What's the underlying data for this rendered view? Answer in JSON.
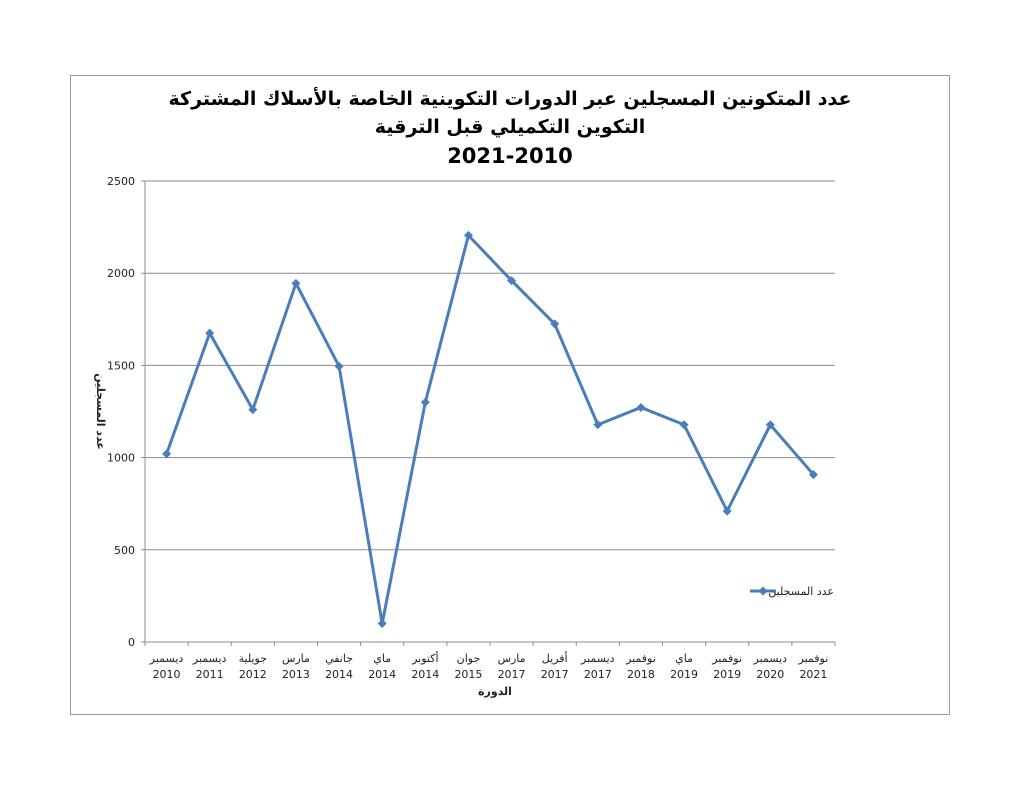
{
  "chart_data": {
    "type": "line",
    "title_lines": [
      "عدد المتكونين المسجلين عبر الدورات التكوينية الخاصة بالأسلاك المشتركة",
      "التكوين التكميلي قبل الترقية",
      "2021-2010"
    ],
    "xlabel": "الدورة",
    "ylabel": "عدد المسجلين",
    "ylim": [
      0,
      2500
    ],
    "yticks": [
      0,
      500,
      1000,
      1500,
      2000,
      2500
    ],
    "grid": true,
    "legend_position": "right",
    "categories": [
      [
        "ديسمبر",
        "2010"
      ],
      [
        "ديسمبر",
        "2011"
      ],
      [
        "جويلية",
        "2012"
      ],
      [
        "مارس",
        "2013"
      ],
      [
        "جانفي",
        "2014"
      ],
      [
        "ماي",
        "2014"
      ],
      [
        "أكتوبر",
        "2014"
      ],
      [
        "جوان",
        "2015"
      ],
      [
        "مارس",
        "2017"
      ],
      [
        "أفريل",
        "2017"
      ],
      [
        "ديسمبر",
        "2017"
      ],
      [
        "نوفمبر",
        "2018"
      ],
      [
        "ماي",
        "2019"
      ],
      [
        "نوفمبر",
        "2019"
      ],
      [
        "ديسمبر",
        "2020"
      ],
      [
        "نوفمبر",
        "2021"
      ]
    ],
    "series": [
      {
        "name": "عدد المسجلين",
        "color": "#4a7ebb",
        "values": [
          1020,
          1675,
          1260,
          1945,
          1495,
          100,
          1300,
          2205,
          1960,
          1725,
          1178,
          1272,
          1178,
          710,
          1178,
          908
        ]
      }
    ]
  }
}
